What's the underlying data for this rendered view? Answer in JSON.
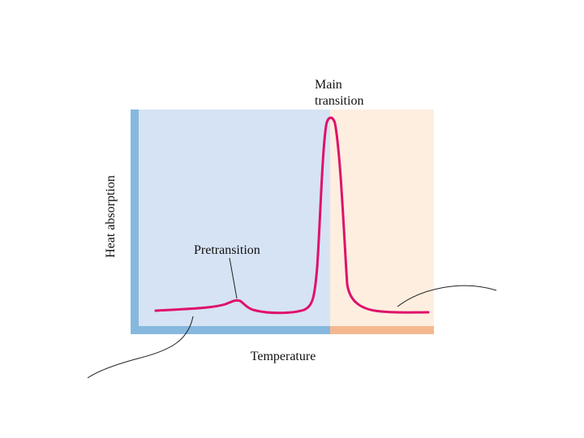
{
  "labels": {
    "main_transition_line1": "Main",
    "main_transition_line2": "transition",
    "pretransition": "Pretransition",
    "x_axis": "Temperature",
    "y_axis": "Heat absorption"
  }
}
